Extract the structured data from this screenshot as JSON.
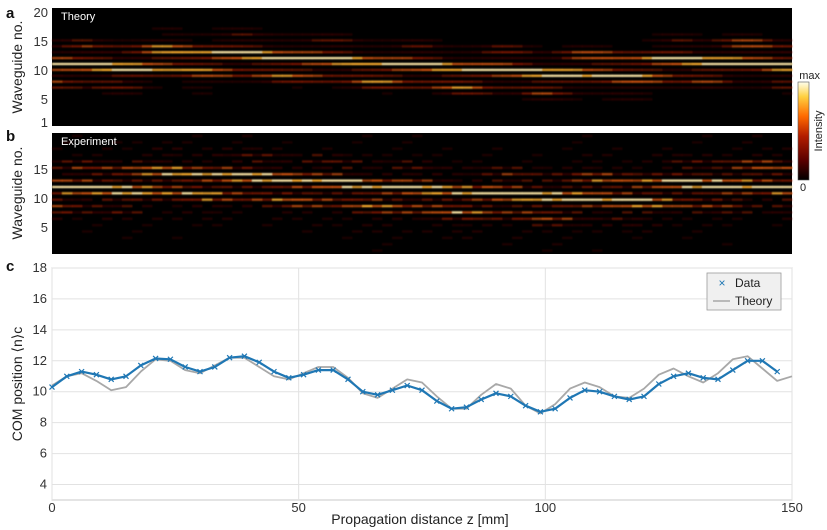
{
  "panels": [
    {
      "letter": "a",
      "inset_label": "Theory",
      "ylabel": "Waveguide no.",
      "yticks": [
        "20",
        "15",
        "10",
        "5",
        "1"
      ]
    },
    {
      "letter": "b",
      "inset_label": "Experiment",
      "ylabel": "Waveguide no.",
      "yticks": [
        "15",
        "10",
        "5"
      ]
    },
    {
      "letter": "c"
    }
  ],
  "colorbar": {
    "max_label": "max",
    "min_label": "0",
    "title": "Intensity",
    "colors": [
      "#000000",
      "#5a0000",
      "#b41e00",
      "#ff6a00",
      "#ffd040",
      "#ffffee"
    ]
  },
  "chart_data": {
    "type": "line",
    "xlabel": "Propagation distance z [mm]",
    "ylabel": "COM position ⟨n⟩c",
    "xlim": [
      0,
      150
    ],
    "ylim": [
      3,
      18
    ],
    "xticks": [
      0,
      50,
      100,
      150
    ],
    "yticks": [
      4,
      6,
      8,
      10,
      12,
      14,
      16,
      18
    ],
    "grid": true,
    "legend_position": "top-right",
    "series": [
      {
        "name": "Data",
        "marker": "x",
        "color": "#1f77b4",
        "x": [
          0,
          3,
          6,
          9,
          12,
          15,
          18,
          21,
          24,
          27,
          30,
          33,
          36,
          39,
          42,
          45,
          48,
          51,
          54,
          57,
          60,
          63,
          66,
          69,
          72,
          75,
          78,
          81,
          84,
          87,
          90,
          93,
          96,
          99,
          102,
          105,
          108,
          111,
          114,
          117,
          120,
          123,
          126,
          129,
          132,
          135,
          138,
          141,
          144,
          147
        ],
        "y": [
          10.3,
          11.0,
          11.3,
          11.1,
          10.8,
          11.0,
          11.7,
          12.15,
          12.1,
          11.6,
          11.3,
          11.6,
          12.2,
          12.3,
          11.9,
          11.3,
          10.9,
          11.1,
          11.4,
          11.4,
          10.8,
          10.0,
          9.8,
          10.1,
          10.4,
          10.1,
          9.4,
          8.9,
          9.0,
          9.5,
          9.9,
          9.7,
          9.1,
          8.7,
          8.9,
          9.6,
          10.1,
          10.0,
          9.7,
          9.5,
          9.7,
          10.5,
          11.0,
          11.2,
          10.9,
          10.8,
          11.4,
          12.0,
          12.0,
          11.3
        ]
      },
      {
        "name": "Theory",
        "color": "#a8a8a8",
        "x": [
          0,
          3,
          6,
          9,
          12,
          15,
          18,
          21,
          24,
          27,
          30,
          33,
          36,
          39,
          42,
          45,
          48,
          51,
          54,
          57,
          60,
          63,
          66,
          69,
          72,
          75,
          78,
          81,
          84,
          87,
          90,
          93,
          96,
          99,
          102,
          105,
          108,
          111,
          114,
          117,
          120,
          123,
          126,
          129,
          132,
          135,
          138,
          141,
          144,
          147,
          150
        ],
        "y": [
          10.4,
          11.0,
          11.2,
          10.7,
          10.1,
          10.3,
          11.3,
          12.1,
          12.0,
          11.4,
          11.2,
          11.7,
          12.2,
          12.2,
          11.6,
          11.0,
          10.8,
          11.2,
          11.6,
          11.6,
          10.9,
          9.9,
          9.6,
          10.2,
          10.8,
          10.6,
          9.7,
          8.9,
          8.9,
          9.8,
          10.5,
          10.2,
          9.1,
          8.6,
          9.2,
          10.2,
          10.6,
          10.3,
          9.7,
          9.6,
          10.2,
          11.1,
          11.5,
          11.0,
          10.6,
          11.2,
          12.1,
          12.3,
          11.5,
          10.7,
          11.0
        ]
      }
    ]
  }
}
